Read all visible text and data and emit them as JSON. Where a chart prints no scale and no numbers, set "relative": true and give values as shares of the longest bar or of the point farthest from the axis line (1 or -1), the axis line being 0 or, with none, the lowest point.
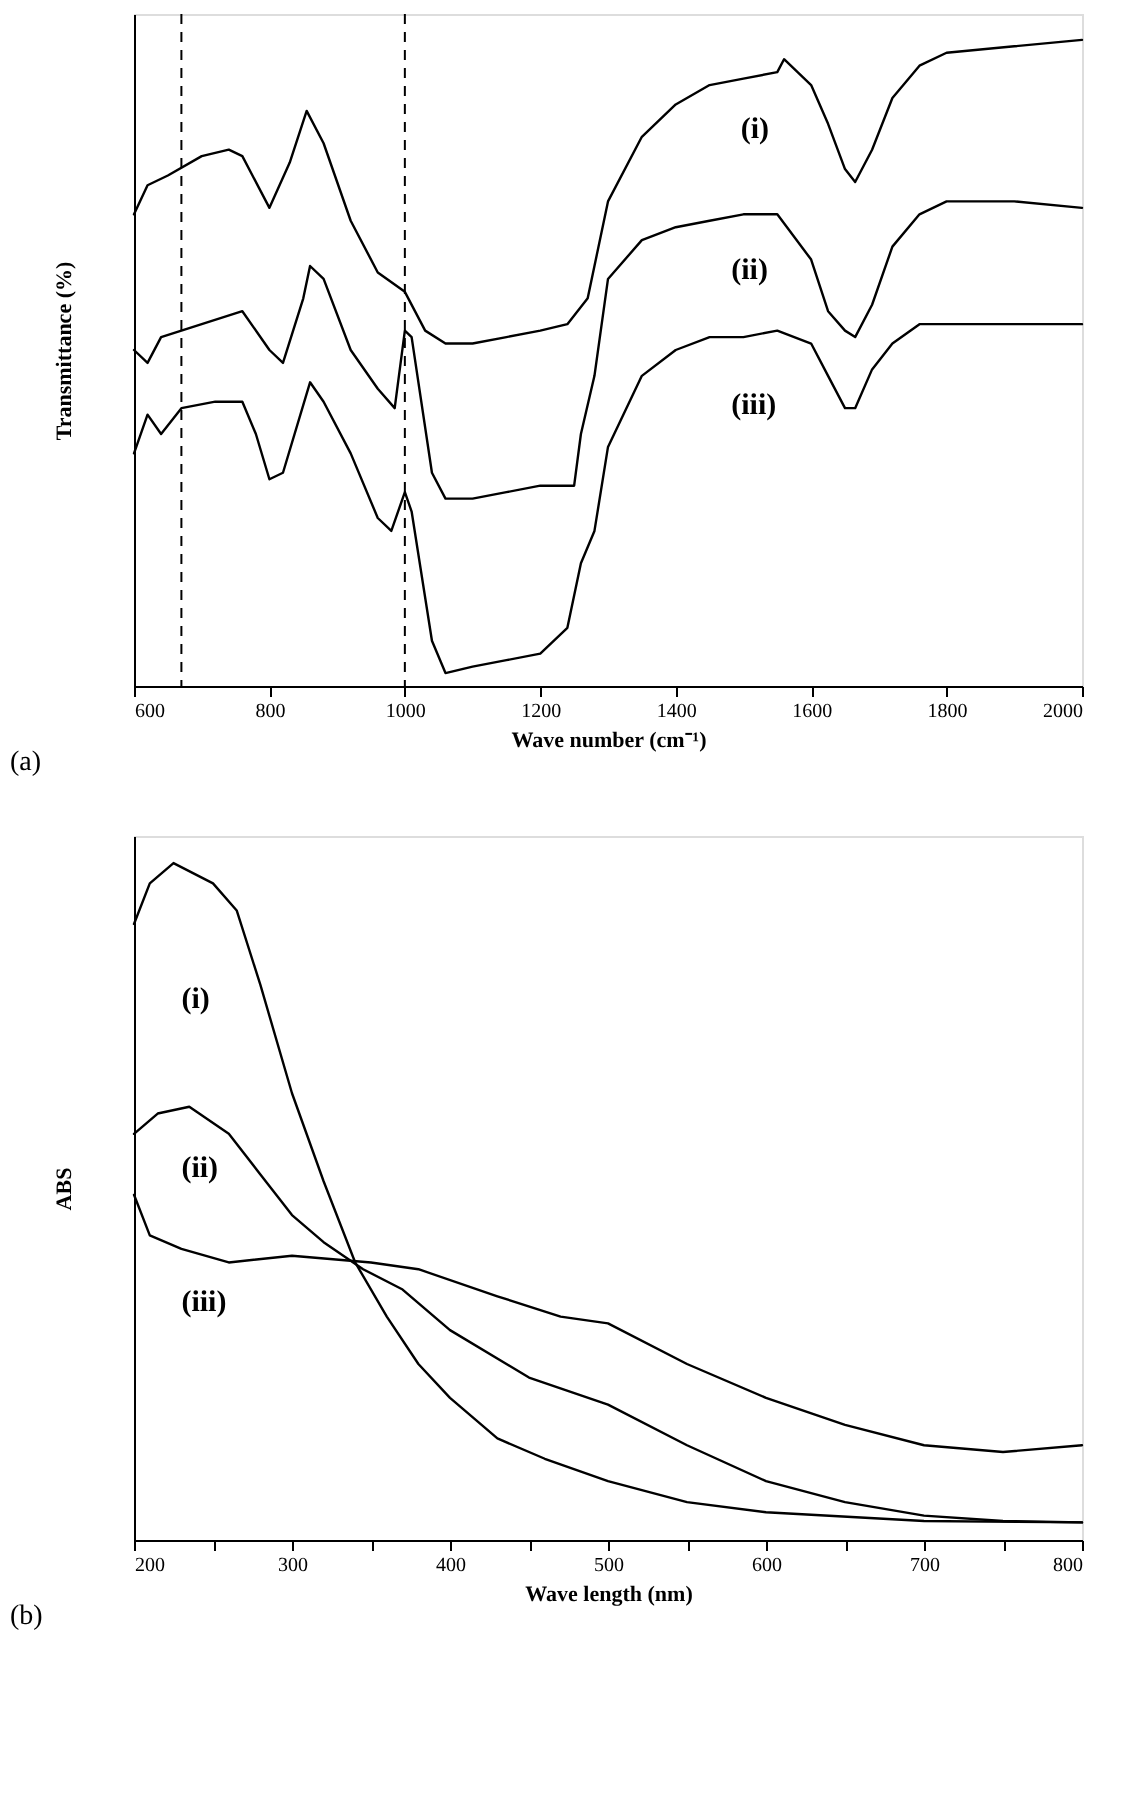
{
  "chart_data": [
    {
      "type": "line",
      "relative": true,
      "xlabel": "Wave number (cm⁻¹)",
      "ylabel": "Transmittance (%)",
      "xlim": [
        600,
        2000
      ],
      "xticks": [
        600,
        800,
        1000,
        1200,
        1400,
        1600,
        1800,
        2000
      ],
      "grid": false,
      "legend": false,
      "line_style": "solid",
      "annotations": [
        "(a)"
      ],
      "ref_lines": [
        {
          "axis": "x",
          "value": 670,
          "color": "#000000",
          "line_style": "dashed"
        },
        {
          "axis": "x",
          "value": 1000,
          "color": "#000000",
          "line_style": "dashed"
        }
      ],
      "series": [
        {
          "name": "(i)",
          "color": "#000000",
          "x": [
            600,
            620,
            650,
            700,
            740,
            760,
            800,
            830,
            855,
            880,
            920,
            960,
            1000,
            1030,
            1060,
            1100,
            1150,
            1200,
            1240,
            1270,
            1300,
            1350,
            1400,
            1450,
            1500,
            1550,
            1560,
            1600,
            1625,
            1650,
            1665,
            1690,
            1720,
            1760,
            1800,
            1900,
            2000
          ],
          "values": [
            0.73,
            0.775,
            0.79,
            0.82,
            0.83,
            0.82,
            0.74,
            0.81,
            0.89,
            0.84,
            0.72,
            0.64,
            0.61,
            0.55,
            0.53,
            0.53,
            0.54,
            0.55,
            0.56,
            0.6,
            0.75,
            0.85,
            0.9,
            0.93,
            0.94,
            0.95,
            0.97,
            0.93,
            0.87,
            0.8,
            0.78,
            0.83,
            0.91,
            0.96,
            0.98,
            0.99,
            1.0
          ]
        },
        {
          "name": "(ii)",
          "color": "#000000",
          "x": [
            600,
            620,
            640,
            670,
            700,
            760,
            800,
            820,
            850,
            860,
            880,
            920,
            960,
            985,
            1000,
            1010,
            1040,
            1060,
            1100,
            1150,
            1200,
            1250,
            1260,
            1280,
            1300,
            1350,
            1400,
            1450,
            1500,
            1550,
            1600,
            1625,
            1650,
            1665,
            1690,
            1720,
            1760,
            1800,
            1900,
            2000
          ],
          "values": [
            0.52,
            0.5,
            0.54,
            0.55,
            0.56,
            0.58,
            0.52,
            0.5,
            0.6,
            0.65,
            0.63,
            0.52,
            0.46,
            0.43,
            0.55,
            0.54,
            0.33,
            0.29,
            0.29,
            0.3,
            0.31,
            0.31,
            0.39,
            0.48,
            0.63,
            0.69,
            0.71,
            0.72,
            0.73,
            0.73,
            0.66,
            0.58,
            0.55,
            0.54,
            0.59,
            0.68,
            0.73,
            0.75,
            0.75,
            0.74
          ]
        },
        {
          "name": "(iii)",
          "color": "#000000",
          "x": [
            600,
            620,
            640,
            670,
            720,
            760,
            780,
            800,
            820,
            860,
            880,
            920,
            960,
            980,
            1000,
            1010,
            1040,
            1060,
            1100,
            1150,
            1200,
            1240,
            1260,
            1280,
            1300,
            1350,
            1400,
            1450,
            1500,
            1550,
            1600,
            1625,
            1650,
            1665,
            1690,
            1720,
            1760,
            1800,
            1900,
            2000
          ],
          "values": [
            0.36,
            0.42,
            0.39,
            0.43,
            0.44,
            0.44,
            0.39,
            0.32,
            0.33,
            0.47,
            0.44,
            0.36,
            0.26,
            0.24,
            0.3,
            0.27,
            0.07,
            0.02,
            0.03,
            0.04,
            0.05,
            0.09,
            0.19,
            0.24,
            0.37,
            0.48,
            0.52,
            0.54,
            0.54,
            0.55,
            0.53,
            0.48,
            0.43,
            0.43,
            0.49,
            0.53,
            0.56,
            0.56,
            0.56,
            0.56
          ]
        }
      ]
    },
    {
      "type": "line",
      "relative": true,
      "xlabel": "Wave length (nm)",
      "ylabel": "ABS",
      "xlim": [
        200,
        800
      ],
      "xticks": [
        200,
        {
          "value": 250,
          "label": null
        },
        300,
        {
          "value": 350,
          "label": null
        },
        400,
        {
          "value": 450,
          "label": null
        },
        500,
        {
          "value": 550,
          "label": null
        },
        600,
        {
          "value": 650,
          "label": null
        },
        700,
        {
          "value": 750,
          "label": null
        },
        800
      ],
      "grid": false,
      "legend": false,
      "line_style": "solid",
      "annotations": [
        "(b)"
      ],
      "series": [
        {
          "name": "(i)",
          "color": "#000000",
          "x": [
            200,
            210,
            225,
            250,
            265,
            280,
            300,
            320,
            340,
            360,
            380,
            400,
            430,
            460,
            500,
            550,
            600,
            700,
            800
          ],
          "values": [
            0.91,
            0.97,
            1.0,
            0.97,
            0.93,
            0.82,
            0.66,
            0.53,
            0.41,
            0.33,
            0.26,
            0.21,
            0.15,
            0.12,
            0.087,
            0.056,
            0.041,
            0.028,
            0.026
          ]
        },
        {
          "name": "(ii)",
          "color": "#000000",
          "x": [
            200,
            215,
            235,
            260,
            280,
            300,
            320,
            345,
            370,
            400,
            450,
            500,
            550,
            600,
            650,
            700,
            750,
            800
          ],
          "values": [
            0.6,
            0.63,
            0.64,
            0.6,
            0.54,
            0.48,
            0.44,
            0.4,
            0.37,
            0.31,
            0.24,
            0.2,
            0.14,
            0.087,
            0.056,
            0.036,
            0.028,
            0.026
          ]
        },
        {
          "name": "(iii)",
          "color": "#000000",
          "x": [
            200,
            210,
            230,
            260,
            300,
            350,
            380,
            430,
            470,
            500,
            550,
            600,
            650,
            700,
            750,
            800
          ],
          "values": [
            0.51,
            0.45,
            0.43,
            0.41,
            0.42,
            0.41,
            0.4,
            0.36,
            0.33,
            0.32,
            0.26,
            0.21,
            0.17,
            0.14,
            0.13,
            0.14
          ]
        }
      ]
    }
  ]
}
